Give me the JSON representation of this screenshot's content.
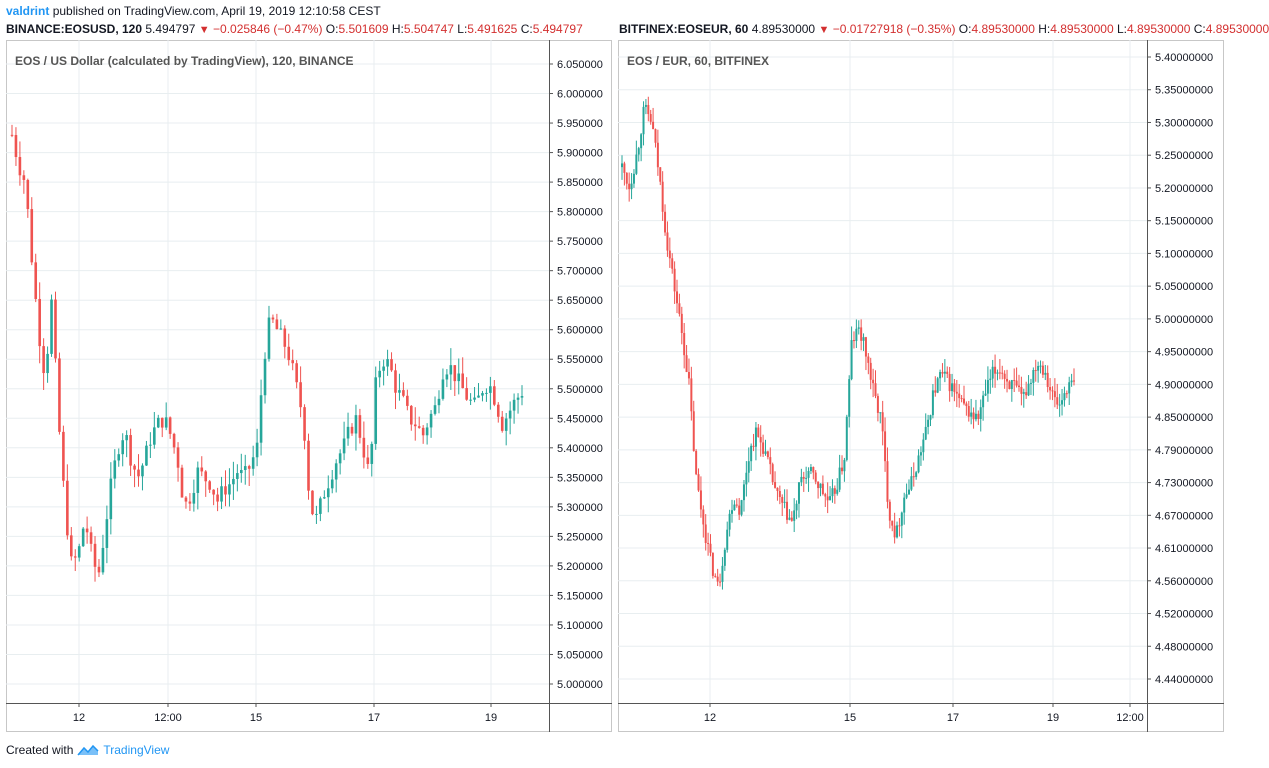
{
  "header": {
    "author": "valdrint",
    "text": "published on TradingView.com, April 19, 2019 12:10:58 CEST"
  },
  "left": {
    "symbol": "BINANCE:EOSUSD, 120",
    "last": "5.494797",
    "change": "−0.025846 (−0.47%)",
    "o_label": "O:",
    "o": "5.501609",
    "h_label": "H:",
    "h": "5.504747",
    "l_label": "L:",
    "l": "5.491625",
    "c_label": "C:",
    "c": "5.494797"
  },
  "right": {
    "symbol": "BITFINEX:EOSEUR, 60",
    "last": "4.89530000",
    "change": "−0.01727918 (−0.35%)",
    "o_label": "O:",
    "o": "4.89530000",
    "h_label": "H:",
    "h": "4.89530000",
    "l_label": "L:",
    "l": "4.89530000",
    "c_label": "C:",
    "c": "4.89530000"
  },
  "footer": {
    "created": "Created with",
    "brand": "TradingView"
  },
  "colors": {
    "up": "#26a69a",
    "down": "#ef5350",
    "grid": "#e8eef0",
    "axis": "#555555"
  },
  "chart_data": [
    {
      "type": "candlestick",
      "title": "EOS / US Dollar (calculated by TradingView), 120, BINANCE",
      "x_ticks": [
        "12",
        "12:00",
        "15",
        "17",
        "19"
      ],
      "y_ticks": [
        "6.050000",
        "6.000000",
        "5.950000",
        "5.900000",
        "5.850000",
        "5.800000",
        "5.750000",
        "5.700000",
        "5.650000",
        "5.600000",
        "5.550000",
        "5.500000",
        "5.450000",
        "5.400000",
        "5.350000",
        "5.300000",
        "5.250000",
        "5.200000",
        "5.150000",
        "5.100000",
        "5.050000",
        "5.000000"
      ],
      "ylim": [
        4.955,
        6.075
      ],
      "close_path": [
        5.93,
        5.88,
        5.85,
        5.72,
        5.6,
        5.52,
        5.65,
        5.45,
        5.3,
        5.2,
        5.22,
        5.28,
        5.22,
        5.18,
        5.26,
        5.34,
        5.4,
        5.43,
        5.38,
        5.35,
        5.38,
        5.42,
        5.44,
        5.45,
        5.42,
        5.38,
        5.3,
        5.32,
        5.36,
        5.35,
        5.34,
        5.31,
        5.33,
        5.34,
        5.36,
        5.35,
        5.37,
        5.4,
        5.55,
        5.62,
        5.6,
        5.58,
        5.55,
        5.5,
        5.45,
        5.3,
        5.28,
        5.32,
        5.35,
        5.38,
        5.4,
        5.43,
        5.45,
        5.4,
        5.35,
        5.52,
        5.55,
        5.54,
        5.5,
        5.48,
        5.45,
        5.44,
        5.42,
        5.45,
        5.47,
        5.53,
        5.54,
        5.52,
        5.5,
        5.48,
        5.47,
        5.5,
        5.51,
        5.48,
        5.44,
        5.46,
        5.48,
        5.495
      ]
    },
    {
      "type": "candlestick",
      "title": "EOS / EUR, 60, BITFINEX",
      "x_ticks": [
        "12",
        "15",
        "17",
        "19",
        "12:00"
      ],
      "y_ticks": [
        "5.40000000",
        "5.35000000",
        "5.30000000",
        "5.25000000",
        "5.20000000",
        "5.15000000",
        "5.10000000",
        "5.05000000",
        "5.00000000",
        "4.95000000",
        "4.90000000",
        "4.85000000",
        "4.79000000",
        "4.73000000",
        "4.67000000",
        "4.61000000",
        "4.56000000",
        "4.52000000",
        "4.48000000",
        "4.44000000"
      ],
      "close_path": [
        5.23,
        5.2,
        5.25,
        5.32,
        5.3,
        5.22,
        5.12,
        5.05,
        4.98,
        4.9,
        4.75,
        4.68,
        4.62,
        4.58,
        4.66,
        4.72,
        4.7,
        4.78,
        4.82,
        4.8,
        4.76,
        4.72,
        4.7,
        4.68,
        4.74,
        4.76,
        4.75,
        4.73,
        4.71,
        4.74,
        4.78,
        4.96,
        4.98,
        4.94,
        4.88,
        4.84,
        4.7,
        4.66,
        4.72,
        4.74,
        4.78,
        4.82,
        4.88,
        4.91,
        4.9,
        4.88,
        4.86,
        4.85,
        4.84,
        4.88,
        4.91,
        4.92,
        4.9,
        4.89,
        4.87,
        4.9,
        4.93,
        4.92,
        4.88,
        4.86,
        4.89,
        4.8953
      ]
    }
  ]
}
